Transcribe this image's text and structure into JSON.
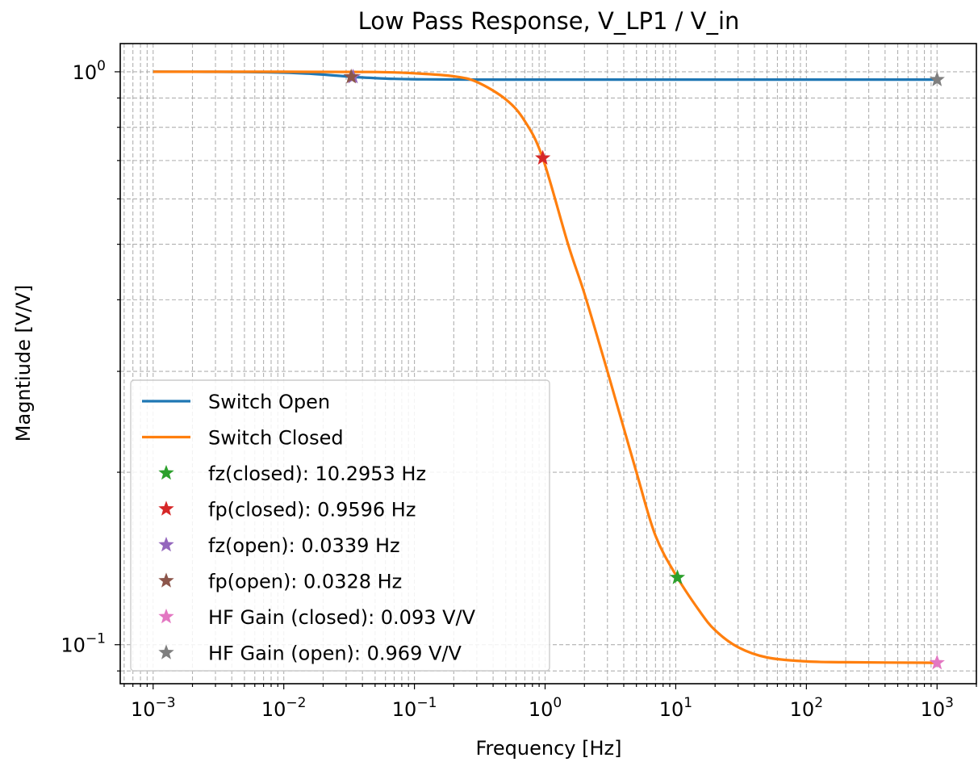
{
  "chart_data": {
    "type": "line",
    "title": "Low Pass Response, V_LP1 / V_in",
    "xlabel": "Frequency [Hz]",
    "ylabel": "Magntiude [V/V]",
    "xscale": "log",
    "yscale": "log",
    "xlim": [
      0.00056,
      2000
    ],
    "ylim": [
      0.0855,
      1.12
    ],
    "grid": "both (major and minor), dashed",
    "legend_position": "lower left",
    "x_tick_labels": [
      {
        "base": "10",
        "exp": "−3",
        "value": 0.001
      },
      {
        "base": "10",
        "exp": "−2",
        "value": 0.01
      },
      {
        "base": "10",
        "exp": "−1",
        "value": 0.1
      },
      {
        "base": "10",
        "exp": "0",
        "value": 1
      },
      {
        "base": "10",
        "exp": "1",
        "value": 10
      },
      {
        "base": "10",
        "exp": "2",
        "value": 100
      },
      {
        "base": "10",
        "exp": "3",
        "value": 1000
      }
    ],
    "y_tick_labels": [
      {
        "base": "10",
        "exp": "0",
        "value": 1
      },
      {
        "base": "10",
        "exp": "−1",
        "value": 0.1
      }
    ],
    "series": [
      {
        "name": "Switch Open",
        "color": "#1f77b4",
        "x": [
          0.001,
          0.003,
          0.008,
          0.015,
          0.025,
          0.033,
          0.045,
          0.07,
          0.12,
          0.3,
          1,
          10,
          100,
          1000
        ],
        "y": [
          1.0,
          0.9997,
          0.998,
          0.993,
          0.985,
          0.98,
          0.976,
          0.972,
          0.97,
          0.969,
          0.969,
          0.969,
          0.969,
          0.969
        ]
      },
      {
        "name": "Switch Closed",
        "color": "#ff7f0e",
        "x": [
          0.001,
          0.01,
          0.05,
          0.1,
          0.2,
          0.3,
          0.5,
          0.7,
          0.9596,
          1.5,
          2,
          3,
          5,
          7,
          10.2953,
          15,
          20,
          30,
          50,
          100,
          200,
          1000
        ],
        "y": [
          1.0,
          1.0,
          0.999,
          0.994,
          0.982,
          0.96,
          0.895,
          0.82,
          0.707,
          0.5,
          0.41,
          0.3,
          0.2,
          0.155,
          0.131,
          0.115,
          0.106,
          0.099,
          0.095,
          0.0935,
          0.0932,
          0.093
        ]
      }
    ],
    "markers": [
      {
        "label": "fz(closed): 10.2953 Hz",
        "color": "#2ca02c",
        "x": 10.2953,
        "y": 0.131
      },
      {
        "label": "fp(closed): 0.9596 Hz",
        "color": "#d62728",
        "x": 0.9596,
        "y": 0.707
      },
      {
        "label": "fz(open): 0.0339 Hz",
        "color": "#9467bd",
        "x": 0.0339,
        "y": 0.98
      },
      {
        "label": "fp(open): 0.0328 Hz",
        "color": "#8c564b",
        "x": 0.0328,
        "y": 0.98
      },
      {
        "label": "HF Gain (closed): 0.093 V/V",
        "color": "#e377c2",
        "x": 1000,
        "y": 0.093
      },
      {
        "label": "HF Gain (open): 0.969 V/V",
        "color": "#7f7f7f",
        "x": 1000,
        "y": 0.969
      }
    ]
  }
}
